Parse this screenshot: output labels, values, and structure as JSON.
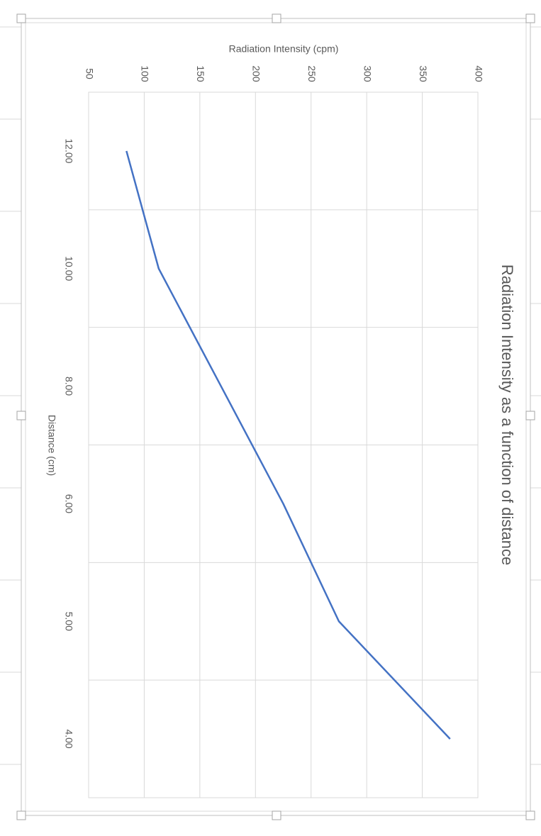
{
  "chart_data": {
    "type": "line",
    "title": "Radiation Intensity as a function of distance",
    "x_label": "Distance (cm)",
    "y_label": "Radiation Intensity (cpm)",
    "categories": [
      "12.00",
      "10.00",
      "8.00",
      "6.00",
      "5.00",
      "4.00"
    ],
    "series": [
      {
        "name": "Radiation Intensity (cpm)",
        "color": "#4472c4",
        "values": [
          84,
          113,
          169,
          225,
          275,
          375
        ]
      }
    ],
    "ylim": [
      50,
      400
    ],
    "yticks": [
      50,
      100,
      150,
      200,
      250,
      300,
      350,
      400
    ],
    "grid": true
  }
}
